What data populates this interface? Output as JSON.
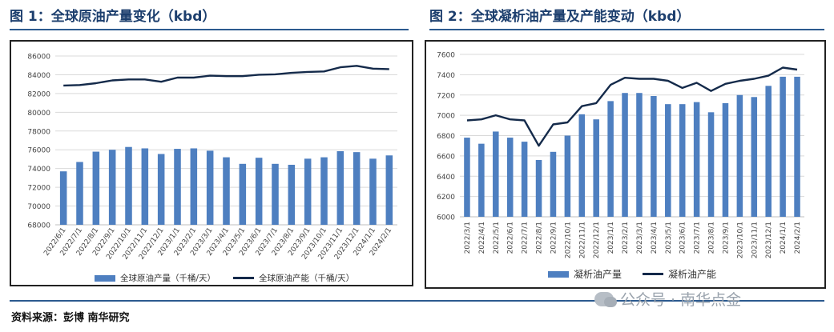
{
  "left": {
    "title": "图 1：全球原油产量变化（kbd）",
    "legend": {
      "bar": "全球原油产量（千桶/天）",
      "line": "全球原油产能（千桶/天）"
    }
  },
  "right": {
    "title": "图 2：全球凝析油产量及产能变动（kbd）",
    "legend": {
      "bar": "凝析油产量",
      "line": "凝析油产能"
    }
  },
  "source": "资料来源：彭博 南华研究",
  "watermark": "公众号 · 南华点金",
  "colors": {
    "bar": "#4e7fc0",
    "line": "#142a4a",
    "grid": "#d9d9d9",
    "title": "#1d3f6e"
  },
  "chart_data": [
    {
      "type": "bar",
      "title": "全球原油产量变化（kbd）",
      "categories": [
        "2022/6/1",
        "2022/7/1",
        "2022/8/1",
        "2022/9/1",
        "2022/10/1",
        "2022/11/1",
        "2022/12/1",
        "2023/1/1",
        "2023/2/1",
        "2023/3/1",
        "2023/4/1",
        "2023/5/1",
        "2023/6/1",
        "2023/7/1",
        "2023/8/1",
        "2023/9/1",
        "2023/10/1",
        "2023/11/1",
        "2023/12/1",
        "2024/1/1",
        "2024/2/1"
      ],
      "series": [
        {
          "name": "全球原油产量（千桶/天）",
          "kind": "bar",
          "values": [
            73700,
            74700,
            75800,
            76000,
            76300,
            76150,
            75550,
            76100,
            76150,
            75900,
            75200,
            74500,
            75150,
            74500,
            74400,
            75050,
            75200,
            75850,
            75750,
            75050,
            75400
          ]
        },
        {
          "name": "全球原油产能（千桶/天）",
          "kind": "line",
          "values": [
            82850,
            82900,
            83100,
            83400,
            83500,
            83500,
            83250,
            83700,
            83700,
            83900,
            83850,
            83850,
            84000,
            84050,
            84200,
            84300,
            84350,
            84800,
            84950,
            84650,
            84600
          ]
        }
      ],
      "yticks": [
        68000,
        70000,
        72000,
        74000,
        76000,
        78000,
        80000,
        82000,
        84000,
        86000
      ],
      "ylim": [
        68000,
        86000
      ],
      "xlabel": "",
      "ylabel": "",
      "grid": true,
      "legend": "bottom"
    },
    {
      "type": "bar",
      "title": "全球凝析油产量及产能变动（kbd）",
      "categories": [
        "2022/3/1",
        "2022/4/1",
        "2022/5/1",
        "2022/6/1",
        "2022/7/1",
        "2022/8/1",
        "2022/9/1",
        "2022/10/1",
        "2022/11/1",
        "2022/12/1",
        "2023/1/1",
        "2023/2/1",
        "2023/3/1",
        "2023/4/1",
        "2023/5/1",
        "2023/6/1",
        "2023/7/1",
        "2023/8/1",
        "2023/9/1",
        "2023/10/1",
        "2023/11/1",
        "2023/12/1",
        "2024/1/1",
        "2024/2/1"
      ],
      "series": [
        {
          "name": "凝析油产量",
          "kind": "bar",
          "values": [
            6780,
            6720,
            6840,
            6780,
            6740,
            6560,
            6640,
            6800,
            7010,
            6960,
            7140,
            7220,
            7220,
            7190,
            7110,
            7110,
            7130,
            7030,
            7120,
            7200,
            7180,
            7290,
            7380,
            7380
          ]
        },
        {
          "name": "凝析油产能",
          "kind": "line",
          "values": [
            6950,
            6960,
            7000,
            6960,
            6950,
            6700,
            6910,
            6930,
            7090,
            7120,
            7300,
            7370,
            7360,
            7360,
            7340,
            7270,
            7320,
            7240,
            7310,
            7340,
            7360,
            7390,
            7470,
            7450
          ]
        }
      ],
      "yticks": [
        6000,
        6200,
        6400,
        6600,
        6800,
        7000,
        7200,
        7400,
        7600
      ],
      "ylim": [
        6000,
        7600
      ],
      "xlabel": "",
      "ylabel": "",
      "grid": true,
      "legend": "bottom"
    }
  ]
}
